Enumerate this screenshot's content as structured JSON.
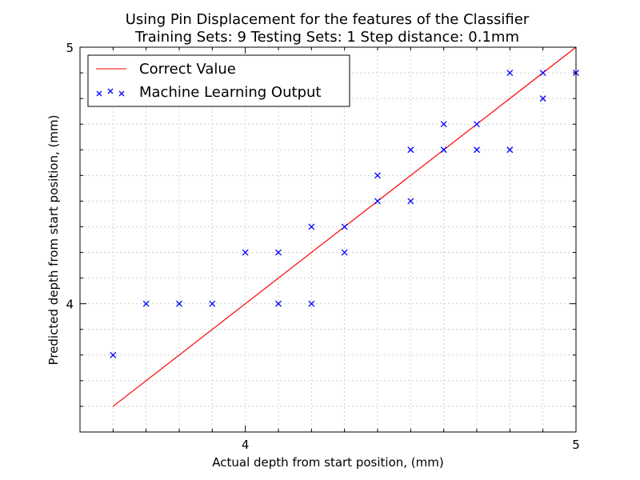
{
  "chart_data": {
    "type": "scatter",
    "title_line1": "Using Pin Displacement for the features of the Classifier",
    "title_line2": "Training Sets: 9    Testing Sets: 1    Step distance: 0.1mm",
    "xlabel": "Actual depth from start position, (mm)",
    "ylabel": "Predicted depth from start position, (mm)",
    "xlim": [
      3.5,
      5.0
    ],
    "ylim": [
      3.5,
      5.0
    ],
    "x_tick_labels": [
      {
        "value": 4,
        "label": "4"
      },
      {
        "value": 5,
        "label": "5"
      }
    ],
    "y_tick_labels": [
      {
        "value": 4,
        "label": "4"
      },
      {
        "value": 5,
        "label": "5"
      }
    ],
    "minor_ticks": [
      3.6,
      3.7,
      3.8,
      3.9,
      4.1,
      4.2,
      4.3,
      4.4,
      4.5,
      4.6,
      4.7,
      4.8,
      4.9
    ],
    "grid": true,
    "legend_position": "top-left",
    "series": [
      {
        "name": "Correct Value",
        "kind": "line",
        "color": "#ff0000",
        "x": [
          3.6,
          5.0
        ],
        "y": [
          3.6,
          5.0
        ]
      },
      {
        "name": "Machine Learning Output",
        "kind": "scatter",
        "marker": "x",
        "color": "#0000ff",
        "x": [
          3.6,
          3.7,
          3.8,
          3.9,
          4.0,
          4.1,
          4.1,
          4.2,
          4.2,
          4.3,
          4.3,
          4.4,
          4.4,
          4.5,
          4.5,
          4.6,
          4.6,
          4.7,
          4.7,
          4.8,
          4.8,
          4.9,
          4.9,
          5.0
        ],
        "y": [
          3.8,
          4.0,
          4.0,
          4.0,
          4.2,
          4.2,
          4.0,
          4.3,
          4.0,
          4.3,
          4.2,
          4.5,
          4.4,
          4.6,
          4.4,
          4.7,
          4.6,
          4.7,
          4.6,
          4.9,
          4.6,
          4.9,
          4.8,
          4.9
        ]
      }
    ]
  }
}
